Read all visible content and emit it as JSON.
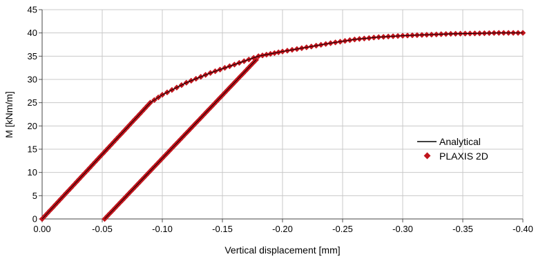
{
  "chart_data": {
    "type": "scatter",
    "xlabel": "Vertical displacement [mm]",
    "ylabel": "M [kNm/m]",
    "xlim": [
      0.0,
      -0.4
    ],
    "ylim": [
      0,
      45
    ],
    "x_ticks": [
      "0.00",
      "-0.05",
      "-0.10",
      "-0.15",
      "-0.20",
      "-0.25",
      "-0.30",
      "-0.35",
      "-0.40"
    ],
    "y_ticks": [
      "0",
      "5",
      "10",
      "15",
      "20",
      "25",
      "30",
      "35",
      "40",
      "45"
    ],
    "grid": true,
    "legend_position": "right",
    "series": [
      {
        "name": "Analytical",
        "style": "line",
        "color": "#000000",
        "points": [
          [
            0.0,
            0
          ],
          [
            -0.09,
            25
          ],
          [
            -0.1,
            26.7
          ],
          [
            -0.12,
            29.3
          ],
          [
            -0.14,
            31.4
          ],
          [
            -0.16,
            33.2
          ],
          [
            -0.18,
            35.0
          ],
          [
            -0.19,
            35.5
          ],
          [
            -0.2,
            36.0
          ],
          [
            -0.22,
            36.9
          ],
          [
            -0.24,
            37.8
          ],
          [
            -0.26,
            38.6
          ],
          [
            -0.28,
            39.1
          ],
          [
            -0.3,
            39.4
          ],
          [
            -0.32,
            39.6
          ],
          [
            -0.34,
            39.8
          ],
          [
            -0.36,
            39.9
          ],
          [
            -0.38,
            40.0
          ],
          [
            -0.4,
            40.0
          ]
        ],
        "unloading": [
          [
            -0.178,
            34.2
          ],
          [
            -0.052,
            0
          ]
        ]
      },
      {
        "name": "PLAXIS 2D",
        "style": "marker",
        "marker": "diamond",
        "color": "#c0141c",
        "points": [
          [
            0.0,
            0
          ],
          [
            -0.09,
            25
          ],
          [
            -0.1,
            26.7
          ],
          [
            -0.12,
            29.3
          ],
          [
            -0.14,
            31.4
          ],
          [
            -0.16,
            33.2
          ],
          [
            -0.18,
            35.0
          ],
          [
            -0.19,
            35.5
          ],
          [
            -0.2,
            36.0
          ],
          [
            -0.22,
            36.9
          ],
          [
            -0.24,
            37.8
          ],
          [
            -0.26,
            38.6
          ],
          [
            -0.28,
            39.1
          ],
          [
            -0.3,
            39.4
          ],
          [
            -0.32,
            39.6
          ],
          [
            -0.34,
            39.8
          ],
          [
            -0.36,
            39.9
          ],
          [
            -0.38,
            40.0
          ],
          [
            -0.4,
            40.0
          ]
        ],
        "unloading": [
          [
            -0.178,
            34.2
          ],
          [
            -0.052,
            0
          ]
        ]
      }
    ]
  }
}
